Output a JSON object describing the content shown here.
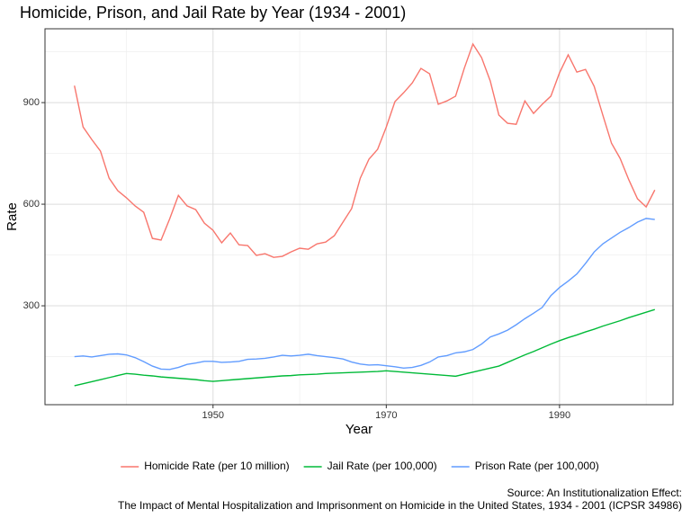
{
  "chart_data": {
    "type": "line",
    "title": "Homicide, Prison, and Jail Rate by Year (1934 - 2001)",
    "x_label": "Year",
    "y_label": "Rate",
    "caption": [
      "Source: An Institutionalization Effect:",
      "The Impact of Mental Hospitalization and Imprisonment on Homicide in the United States, 1934 - 2001 (ICPSR 34986)"
    ],
    "legend": "bottom",
    "grid": true,
    "xlim": [
      1930.6,
      2003.1
    ],
    "xticks": [
      1950,
      1970,
      1990
    ],
    "xminorticks": [
      1940,
      1960,
      1980,
      2000
    ],
    "ylim": [
      8,
      1118
    ],
    "yticks": [
      300,
      600,
      900
    ],
    "yminorticks": [
      150,
      450,
      750,
      1050
    ],
    "x": [
      1934,
      1935,
      1936,
      1937,
      1938,
      1939,
      1940,
      1941,
      1942,
      1943,
      1944,
      1945,
      1946,
      1947,
      1948,
      1949,
      1950,
      1951,
      1952,
      1953,
      1954,
      1955,
      1956,
      1957,
      1958,
      1959,
      1960,
      1961,
      1962,
      1963,
      1964,
      1965,
      1966,
      1967,
      1968,
      1969,
      1970,
      1971,
      1972,
      1973,
      1974,
      1975,
      1976,
      1977,
      1978,
      1979,
      1980,
      1981,
      1982,
      1983,
      1984,
      1985,
      1986,
      1987,
      1988,
      1989,
      1990,
      1991,
      1992,
      1993,
      1994,
      1995,
      1996,
      1997,
      1998,
      1999,
      2000,
      2001
    ],
    "series": [
      {
        "name": "Homicide Rate (per 10 million)",
        "color": "#f8766d",
        "values": [
          950,
          828,
          791,
          757,
          677,
          640,
          619,
          595,
          576,
          499,
          494,
          557,
          626,
          595,
          584,
          544,
          523,
          486,
          515,
          480,
          478,
          449,
          454,
          443,
          446,
          459,
          470,
          467,
          483,
          488,
          507,
          547,
          587,
          677,
          733,
          762,
          828,
          903,
          929,
          958,
          1001,
          985,
          895,
          905,
          919,
          1001,
          1073,
          1033,
          964,
          863,
          839,
          836,
          905,
          868,
          895,
          919,
          988,
          1041,
          990,
          998,
          948,
          863,
          780,
          735,
          672,
          616,
          592,
          642
        ]
      },
      {
        "name": "Jail Rate (per 100,000)",
        "color": "#00ba38",
        "values": [
          64,
          70,
          76,
          82,
          88,
          94,
          100,
          98,
          95,
          93,
          90,
          88,
          86,
          84,
          82,
          79,
          77,
          79,
          81,
          83,
          85,
          87,
          89,
          91,
          93,
          94,
          96,
          97,
          98,
          100,
          101,
          102,
          103,
          104,
          105,
          106,
          108,
          106,
          104,
          102,
          100,
          98,
          96,
          94,
          92,
          98,
          104,
          110,
          116,
          122,
          133,
          144,
          155,
          165,
          176,
          187,
          197,
          206,
          214,
          223,
          231,
          240,
          248,
          256,
          265,
          273,
          281,
          289
        ]
      },
      {
        "name": "Prison Rate (per 100,000)",
        "color": "#619cff",
        "values": [
          150,
          152,
          149,
          153,
          157,
          158,
          155,
          147,
          135,
          122,
          113,
          112,
          118,
          127,
          131,
          136,
          136,
          133,
          134,
          136,
          142,
          143,
          145,
          149,
          154,
          152,
          154,
          157,
          153,
          150,
          147,
          143,
          134,
          128,
          125,
          126,
          123,
          120,
          116,
          118,
          124,
          134,
          149,
          153,
          161,
          164,
          171,
          187,
          208,
          217,
          228,
          244,
          262,
          278,
          295,
          330,
          354,
          373,
          394,
          425,
          459,
          483,
          500,
          517,
          531,
          547,
          558,
          555
        ]
      }
    ]
  }
}
